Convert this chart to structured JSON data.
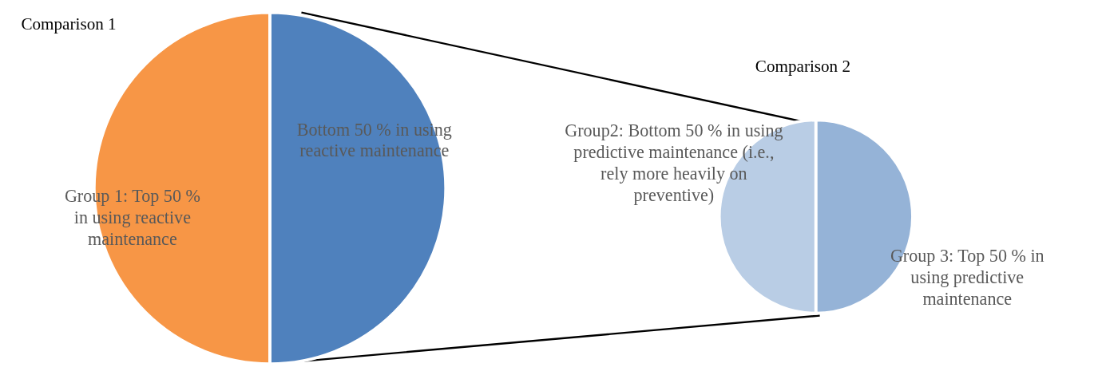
{
  "chart_data": [
    {
      "type": "pie",
      "title": "Comparison 1",
      "categories": [
        "Group 1: Top 50 % in using reactive maintenance",
        "Bottom 50 % in using reactive maintenance"
      ],
      "values": [
        50,
        50
      ],
      "colors": [
        "#f79646",
        "#4f81bd"
      ]
    },
    {
      "type": "pie",
      "title": "Comparison 2",
      "categories": [
        "Group2: Bottom 50 % in using predictive maintenance (i.e., rely more heavily on preventive)",
        "Group 3: Top 50 % in using predictive maintenance"
      ],
      "values": [
        50,
        50
      ],
      "colors": [
        "#b9cde5",
        "#95b3d7"
      ]
    }
  ]
}
